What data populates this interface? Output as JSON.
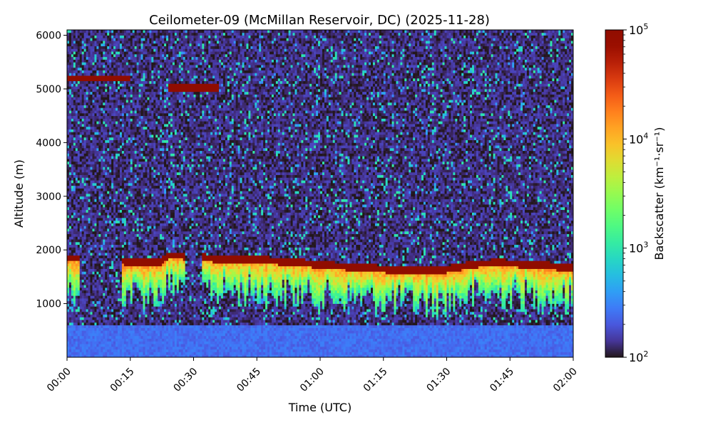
{
  "chart_data": {
    "type": "heatmap",
    "title": "Ceilometer-09 (McMillan Reservoir, DC) (2025-11-28)",
    "xlabel": "Time (UTC)",
    "ylabel": "Altitude (m)",
    "colorbar_label": "Backscatter (km⁻¹·sr⁻¹)",
    "colormap": "turbo",
    "colorbar_scale": "log",
    "colorbar_range": [
      100,
      100000
    ],
    "colorbar_ticks": [
      {
        "base": "10",
        "exp": "2"
      },
      {
        "base": "10",
        "exp": "3"
      },
      {
        "base": "10",
        "exp": "4"
      },
      {
        "base": "10",
        "exp": "5"
      }
    ],
    "x_range_minutes": [
      0,
      120
    ],
    "x_ticks": [
      "00:00",
      "00:15",
      "00:30",
      "00:45",
      "01:00",
      "01:15",
      "01:30",
      "01:45",
      "02:00"
    ],
    "y_range": [
      0,
      6100
    ],
    "y_ticks": [
      1000,
      2000,
      3000,
      4000,
      5000,
      6000
    ],
    "grid": false,
    "background_level": 130,
    "near_surface_level": 250,
    "upper_cloud_layer": [
      {
        "t_start": 0,
        "t_end": 15,
        "altitude": 5200,
        "intensity": 100000
      },
      {
        "t_start": 24,
        "t_end": 36,
        "altitude": 5040,
        "intensity": 100000
      }
    ],
    "low_cloud_layer": {
      "altitude_trace": [
        {
          "t": 0,
          "alt": 1850
        },
        {
          "t": 2,
          "alt": 1850
        },
        {
          "t": 13,
          "alt": 1800
        },
        {
          "t": 17,
          "alt": 1760
        },
        {
          "t": 22,
          "alt": 1760
        },
        {
          "t": 24,
          "alt": 1900
        },
        {
          "t": 27,
          "alt": 1900
        },
        {
          "t": 35,
          "alt": 1840
        },
        {
          "t": 45,
          "alt": 1820
        },
        {
          "t": 55,
          "alt": 1770
        },
        {
          "t": 62,
          "alt": 1710
        },
        {
          "t": 70,
          "alt": 1680
        },
        {
          "t": 76,
          "alt": 1640
        },
        {
          "t": 83,
          "alt": 1620
        },
        {
          "t": 88,
          "alt": 1610
        },
        {
          "t": 93,
          "alt": 1690
        },
        {
          "t": 98,
          "alt": 1750
        },
        {
          "t": 103,
          "alt": 1760
        },
        {
          "t": 108,
          "alt": 1740
        },
        {
          "t": 113,
          "alt": 1720
        },
        {
          "t": 120,
          "alt": 1660
        }
      ],
      "gaps_minutes": [
        [
          3,
          13
        ],
        [
          28,
          32
        ]
      ],
      "intensity": 100000
    },
    "below_cloud_precipitation": {
      "typical_depth_m": 700,
      "intensity_range": [
        1000,
        20000
      ]
    }
  }
}
